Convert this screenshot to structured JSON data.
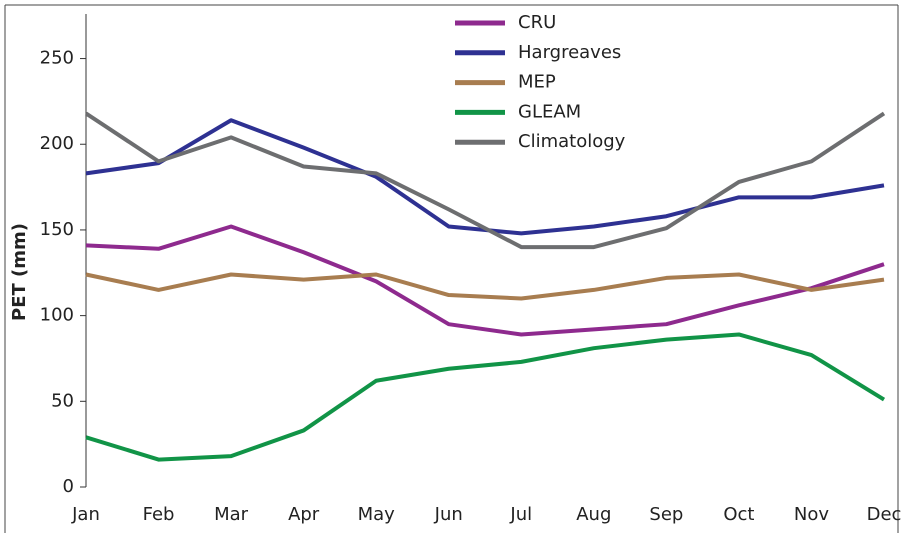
{
  "chart_data": {
    "type": "line",
    "y_label": "PET (mm)",
    "categories": [
      "Jan",
      "Feb",
      "Mar",
      "Apr",
      "May",
      "Jun",
      "Jul",
      "Aug",
      "Sep",
      "Oct",
      "Nov",
      "Dec"
    ],
    "series": [
      {
        "name": "CRU",
        "color": "#8e2a8e",
        "values": [
          141,
          139,
          152,
          137,
          120,
          95,
          89,
          92,
          95,
          106,
          116,
          130
        ]
      },
      {
        "name": "Hargreaves",
        "color": "#2e3192",
        "values": [
          183,
          189,
          214,
          198,
          181,
          152,
          148,
          152,
          158,
          169,
          169,
          176
        ]
      },
      {
        "name": "MEP",
        "color": "#a87d50",
        "values": [
          124,
          115,
          124,
          121,
          124,
          112,
          110,
          115,
          122,
          124,
          115,
          121
        ]
      },
      {
        "name": "GLEAM",
        "color": "#119447",
        "values": [
          29,
          16,
          18,
          33,
          62,
          69,
          73,
          81,
          86,
          89,
          77,
          51
        ]
      },
      {
        "name": "Climatology",
        "color": "#6d6e70",
        "values": [
          218,
          190,
          204,
          187,
          183,
          162,
          140,
          140,
          151,
          178,
          190,
          218
        ]
      }
    ],
    "ylim": [
      0,
      276
    ],
    "yticks": [
      0,
      50,
      100,
      150,
      200,
      250
    ],
    "legend": "upper center",
    "grid": false
  }
}
